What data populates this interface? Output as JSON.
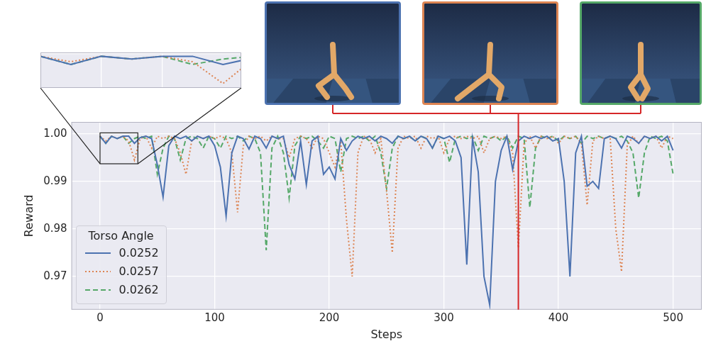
{
  "chart_data": {
    "type": "line",
    "x_label": "Steps",
    "y_label": "Reward",
    "legend_title": "Torso Angle",
    "legend": "lower left",
    "grid": true,
    "xlim": [
      -25,
      525
    ],
    "xticks": [
      0,
      100,
      200,
      300,
      400,
      500
    ],
    "ylim": [
      0.963,
      1.0025
    ],
    "yticks": [
      0.97,
      0.98,
      0.99,
      {
        "value": 1,
        "label": "1.00"
      }
    ],
    "x": [
      0,
      5,
      10,
      15,
      20,
      25,
      30,
      35,
      40,
      45,
      50,
      55,
      60,
      65,
      70,
      75,
      80,
      85,
      90,
      95,
      100,
      105,
      110,
      115,
      120,
      125,
      130,
      135,
      140,
      145,
      150,
      155,
      160,
      165,
      170,
      175,
      180,
      185,
      190,
      195,
      200,
      205,
      210,
      215,
      220,
      225,
      230,
      235,
      240,
      245,
      250,
      255,
      260,
      265,
      270,
      275,
      280,
      285,
      290,
      295,
      300,
      305,
      310,
      315,
      320,
      325,
      330,
      335,
      340,
      345,
      350,
      355,
      360,
      365,
      370,
      375,
      380,
      385,
      390,
      395,
      400,
      405,
      410,
      415,
      420,
      425,
      430,
      435,
      440,
      445,
      450,
      455,
      460,
      465,
      470,
      475,
      480,
      485,
      490,
      495,
      500
    ],
    "series": [
      {
        "name": "0.0252",
        "color": "#4c72b0",
        "line_style": "solid",
        "values": [
          0.9995,
          0.998,
          0.9995,
          0.999,
          0.9995,
          0.9995,
          0.998,
          0.9992,
          0.9995,
          0.999,
          0.9935,
          0.9867,
          0.9975,
          0.9995,
          0.999,
          0.9995,
          0.9985,
          0.9995,
          0.999,
          0.9995,
          0.9975,
          0.993,
          0.9827,
          0.996,
          0.9995,
          0.999,
          0.9968,
          0.9995,
          0.999,
          0.997,
          0.9995,
          0.999,
          0.9995,
          0.9935,
          0.9905,
          0.9985,
          0.9893,
          0.9985,
          0.9995,
          0.9915,
          0.993,
          0.9905,
          0.999,
          0.9965,
          0.9985,
          0.9995,
          0.999,
          0.9995,
          0.9985,
          0.9995,
          0.999,
          0.998,
          0.9995,
          0.999,
          0.9995,
          0.9985,
          0.9995,
          0.999,
          0.997,
          0.9995,
          0.999,
          0.9995,
          0.9985,
          0.995,
          0.9725,
          0.999,
          0.992,
          0.97,
          0.964,
          0.99,
          0.9965,
          0.9995,
          0.9925,
          0.9985,
          0.9995,
          0.999,
          0.9995,
          0.999,
          0.9995,
          0.9985,
          0.999,
          0.99,
          0.97,
          0.996,
          0.9995,
          0.989,
          0.99,
          0.9885,
          0.999,
          0.9995,
          0.999,
          0.997,
          0.9995,
          0.999,
          0.998,
          0.9995,
          0.999,
          0.9995,
          0.9985,
          0.9995,
          0.9965
        ]
      },
      {
        "name": "0.0257",
        "color": "#dd8452",
        "line_style": "dotted",
        "values": [
          0.9995,
          0.9985,
          0.9995,
          0.999,
          0.9995,
          0.9985,
          0.9945,
          0.999,
          0.9995,
          0.997,
          0.9995,
          0.999,
          0.9995,
          0.999,
          0.996,
          0.9915,
          0.9985,
          0.9995,
          0.999,
          0.9995,
          0.999,
          0.9995,
          0.999,
          0.996,
          0.9835,
          0.9975,
          0.9995,
          0.999,
          0.9995,
          0.9985,
          0.9995,
          0.999,
          0.999,
          0.995,
          0.999,
          0.9995,
          0.999,
          0.997,
          0.9995,
          0.999,
          0.996,
          0.993,
          0.9985,
          0.982,
          0.97,
          0.996,
          0.9995,
          0.999,
          0.996,
          0.999,
          0.988,
          0.975,
          0.997,
          0.9995,
          0.999,
          0.9995,
          0.997,
          0.9995,
          0.999,
          0.9995,
          0.996,
          0.999,
          0.9995,
          0.999,
          0.9995,
          0.999,
          0.9995,
          0.996,
          0.999,
          0.9995,
          0.999,
          0.9995,
          0.996,
          0.976,
          0.998,
          0.9995,
          0.997,
          0.9995,
          0.999,
          0.9995,
          0.998,
          0.9995,
          0.999,
          0.9995,
          0.998,
          0.985,
          0.9985,
          0.9995,
          0.999,
          0.9995,
          0.98,
          0.971,
          0.9975,
          0.9995,
          0.998,
          0.9995,
          0.999,
          0.9995,
          0.997,
          0.9995,
          0.999
        ]
      },
      {
        "name": "0.0262",
        "color": "#55a868",
        "line_style": "dashed",
        "values": [
          0.9995,
          0.998,
          0.9995,
          0.999,
          0.9995,
          0.998,
          0.999,
          0.9995,
          0.999,
          0.9995,
          0.9915,
          0.997,
          0.9995,
          0.999,
          0.9945,
          0.999,
          0.9995,
          0.999,
          0.997,
          0.9995,
          0.999,
          0.997,
          0.9995,
          0.999,
          0.9995,
          0.9985,
          0.9995,
          0.999,
          0.996,
          0.9755,
          0.997,
          0.9995,
          0.996,
          0.9865,
          0.9975,
          0.9995,
          0.999,
          0.9995,
          0.9985,
          0.997,
          0.9995,
          0.999,
          0.992,
          0.999,
          0.9995,
          0.999,
          0.9995,
          0.9985,
          0.9995,
          0.996,
          0.9885,
          0.997,
          0.9995,
          0.999,
          0.9995,
          0.9985,
          0.9995,
          0.999,
          0.997,
          0.9995,
          0.999,
          0.994,
          0.999,
          0.9995,
          0.999,
          0.9995,
          0.9965,
          0.9995,
          0.999,
          0.9995,
          0.9985,
          0.9995,
          0.997,
          0.9995,
          0.999,
          0.9845,
          0.997,
          0.9995,
          0.999,
          0.9995,
          0.9985,
          0.9995,
          0.999,
          0.9995,
          0.998,
          0.9995,
          0.999,
          0.9995,
          0.999,
          0.9995,
          0.999,
          0.9995,
          0.9985,
          0.996,
          0.9865,
          0.996,
          0.9995,
          0.999,
          0.9995,
          0.9985,
          0.9915
        ]
      }
    ],
    "vline": {
      "x": 365,
      "color": "#d62728"
    },
    "inset": {
      "xlim": [
        0,
        33
      ],
      "ylim": [
        0.9937,
        1.0002
      ],
      "xticks": [
        10,
        20
      ],
      "yticks": [
        1
      ]
    }
  }
}
